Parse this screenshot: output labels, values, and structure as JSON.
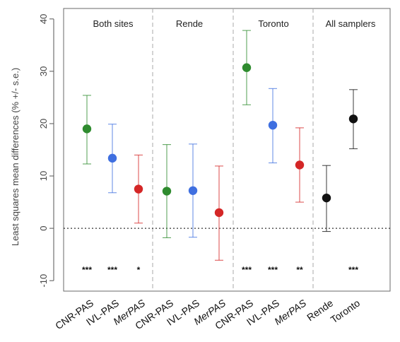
{
  "chart_data": {
    "type": "scatter",
    "title": "",
    "xlabel": "",
    "ylabel": "Least squares mean differences (% +/- s.e.)",
    "ylim": [
      -12,
      42
    ],
    "yticks": [
      -10,
      0,
      10,
      20,
      30,
      40
    ],
    "reference_line": 0,
    "grid": false,
    "panels": [
      {
        "label": "Both sites"
      },
      {
        "label": "Rende"
      },
      {
        "label": "Toronto"
      },
      {
        "label": "All samplers"
      }
    ],
    "points": [
      {
        "category": "CNR-PAS",
        "italic": false,
        "panel": 0,
        "value": 19.0,
        "lower": 12.3,
        "upper": 25.4,
        "color": "#2e8b2e",
        "signif": "***"
      },
      {
        "category": "IVL-PAS",
        "italic": false,
        "panel": 0,
        "value": 13.4,
        "lower": 6.8,
        "upper": 19.9,
        "color": "#3f6fe0",
        "signif": "***"
      },
      {
        "category": "MerPAS",
        "italic": true,
        "panel": 0,
        "value": 7.5,
        "lower": 1.0,
        "upper": 14.0,
        "color": "#d42626",
        "signif": "*"
      },
      {
        "category": "CNR-PAS",
        "italic": false,
        "panel": 1,
        "value": 7.1,
        "lower": -1.8,
        "upper": 16.0,
        "color": "#2e8b2e",
        "signif": ""
      },
      {
        "category": "IVL-PAS",
        "italic": false,
        "panel": 1,
        "value": 7.2,
        "lower": -1.7,
        "upper": 16.1,
        "color": "#3f6fe0",
        "signif": ""
      },
      {
        "category": "MerPAS",
        "italic": true,
        "panel": 1,
        "value": 3.0,
        "lower": -6.1,
        "upper": 11.9,
        "color": "#d42626",
        "signif": ""
      },
      {
        "category": "CNR-PAS",
        "italic": false,
        "panel": 2,
        "value": 30.7,
        "lower": 23.6,
        "upper": 37.8,
        "color": "#2e8b2e",
        "signif": "***"
      },
      {
        "category": "IVL-PAS",
        "italic": false,
        "panel": 2,
        "value": 19.7,
        "lower": 12.5,
        "upper": 26.7,
        "color": "#3f6fe0",
        "signif": "***"
      },
      {
        "category": "MerPAS",
        "italic": true,
        "panel": 2,
        "value": 12.1,
        "lower": 5.0,
        "upper": 19.2,
        "color": "#d42626",
        "signif": "**"
      },
      {
        "category": "Rende",
        "italic": false,
        "panel": 3,
        "value": 5.8,
        "lower": -0.6,
        "upper": 12.0,
        "color": "#111111",
        "signif": ""
      },
      {
        "category": "Toronto",
        "italic": false,
        "panel": 3,
        "value": 20.9,
        "lower": 15.2,
        "upper": 26.5,
        "color": "#111111",
        "signif": "***"
      }
    ]
  }
}
